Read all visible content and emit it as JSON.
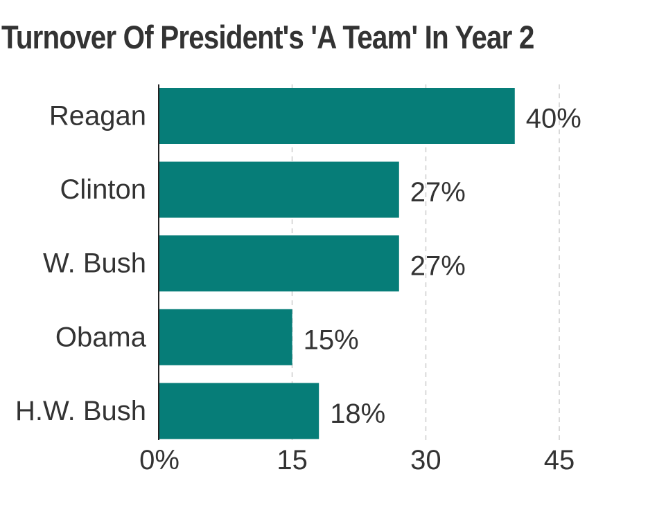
{
  "title": "Turnover Of President's 'A Team' In Year 2",
  "colors": {
    "bar": "#067d78",
    "text": "#333333",
    "grid": "#d9d9d9",
    "axis": "#222222"
  },
  "chart_data": {
    "type": "bar",
    "orientation": "horizontal",
    "title": "Turnover Of President's 'A Team' In Year 2",
    "categories": [
      "Reagan",
      "Clinton",
      "W. Bush",
      "Obama",
      "H.W. Bush"
    ],
    "values": [
      40,
      27,
      27,
      15,
      18
    ],
    "value_labels": [
      "40%",
      "27%",
      "27%",
      "15%",
      "18%"
    ],
    "xlim": [
      0,
      45
    ],
    "x_ticks": [
      0,
      15,
      30,
      45
    ],
    "x_tick_labels": [
      "0%",
      "15",
      "30",
      "45"
    ],
    "grid": "vertical dashed",
    "xlabel": "",
    "ylabel": ""
  }
}
